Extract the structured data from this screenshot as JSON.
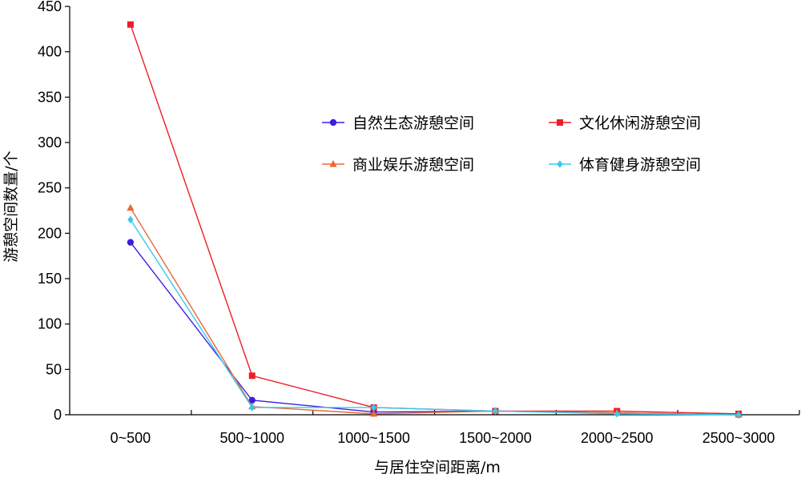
{
  "chart_data": {
    "type": "line",
    "title": "",
    "xlabel": "与居住空间距离/m",
    "ylabel": "游憩空间数量/个",
    "ylim": [
      0,
      450
    ],
    "yticks": [
      0,
      50,
      100,
      150,
      200,
      250,
      300,
      350,
      400,
      450
    ],
    "categories": [
      "0~500",
      "500~1000",
      "1000~1500",
      "1500~2000",
      "2000~2500",
      "2500~3000"
    ],
    "grid": false,
    "legend_placement": "upper-right",
    "series": [
      {
        "name": "自然生态游憩空间",
        "color": "#3b1fe0",
        "marker": "circle",
        "values": [
          190,
          16,
          3,
          4,
          2,
          0
        ]
      },
      {
        "name": "文化休闲游憩空间",
        "color": "#ee1c25",
        "marker": "square",
        "values": [
          430,
          43,
          8,
          4,
          4,
          1
        ]
      },
      {
        "name": "商业娱乐游憩空间",
        "color": "#e8693a",
        "marker": "triangle",
        "values": [
          228,
          9,
          1,
          4,
          2,
          0
        ]
      },
      {
        "name": "体育健身游憩空间",
        "color": "#38c8ee",
        "marker": "diamond",
        "values": [
          215,
          8,
          8,
          4,
          1,
          0
        ]
      }
    ]
  }
}
